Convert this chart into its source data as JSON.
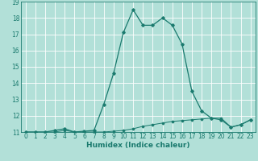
{
  "title": "",
  "xlabel": "Humidex (Indice chaleur)",
  "ylabel": "",
  "bg_color": "#b2e0d8",
  "grid_color": "#ffffff",
  "line_color": "#1a7a6e",
  "xlim": [
    -0.5,
    23.5
  ],
  "ylim": [
    11,
    19
  ],
  "xticks": [
    0,
    1,
    2,
    3,
    4,
    5,
    6,
    7,
    8,
    9,
    10,
    11,
    12,
    13,
    14,
    15,
    16,
    17,
    18,
    19,
    20,
    21,
    22,
    23
  ],
  "yticks": [
    11,
    12,
    13,
    14,
    15,
    16,
    17,
    18,
    19
  ],
  "series1_x": [
    0,
    1,
    2,
    3,
    4,
    5,
    6,
    7,
    8,
    9,
    10,
    11,
    12,
    13,
    14,
    15,
    16,
    17,
    18,
    19,
    20,
    21,
    22,
    23
  ],
  "series1_y": [
    11.0,
    11.0,
    11.0,
    11.1,
    11.2,
    11.0,
    11.05,
    11.1,
    12.7,
    14.6,
    17.1,
    18.5,
    17.55,
    17.55,
    18.0,
    17.55,
    16.4,
    13.5,
    12.3,
    11.85,
    11.75,
    11.3,
    11.45,
    11.75
  ],
  "series2_x": [
    0,
    1,
    2,
    3,
    4,
    5,
    6,
    7,
    8,
    9,
    10,
    11,
    12,
    13,
    14,
    15,
    16,
    17,
    18,
    19,
    20,
    21,
    22,
    23
  ],
  "series2_y": [
    11.0,
    11.0,
    11.0,
    11.0,
    11.1,
    11.0,
    11.0,
    11.0,
    11.0,
    11.05,
    11.1,
    11.2,
    11.35,
    11.45,
    11.55,
    11.65,
    11.7,
    11.75,
    11.8,
    11.85,
    11.85,
    11.3,
    11.45,
    11.75
  ],
  "xlabel_fontsize": 6.5,
  "tick_fontsize": 5.5
}
